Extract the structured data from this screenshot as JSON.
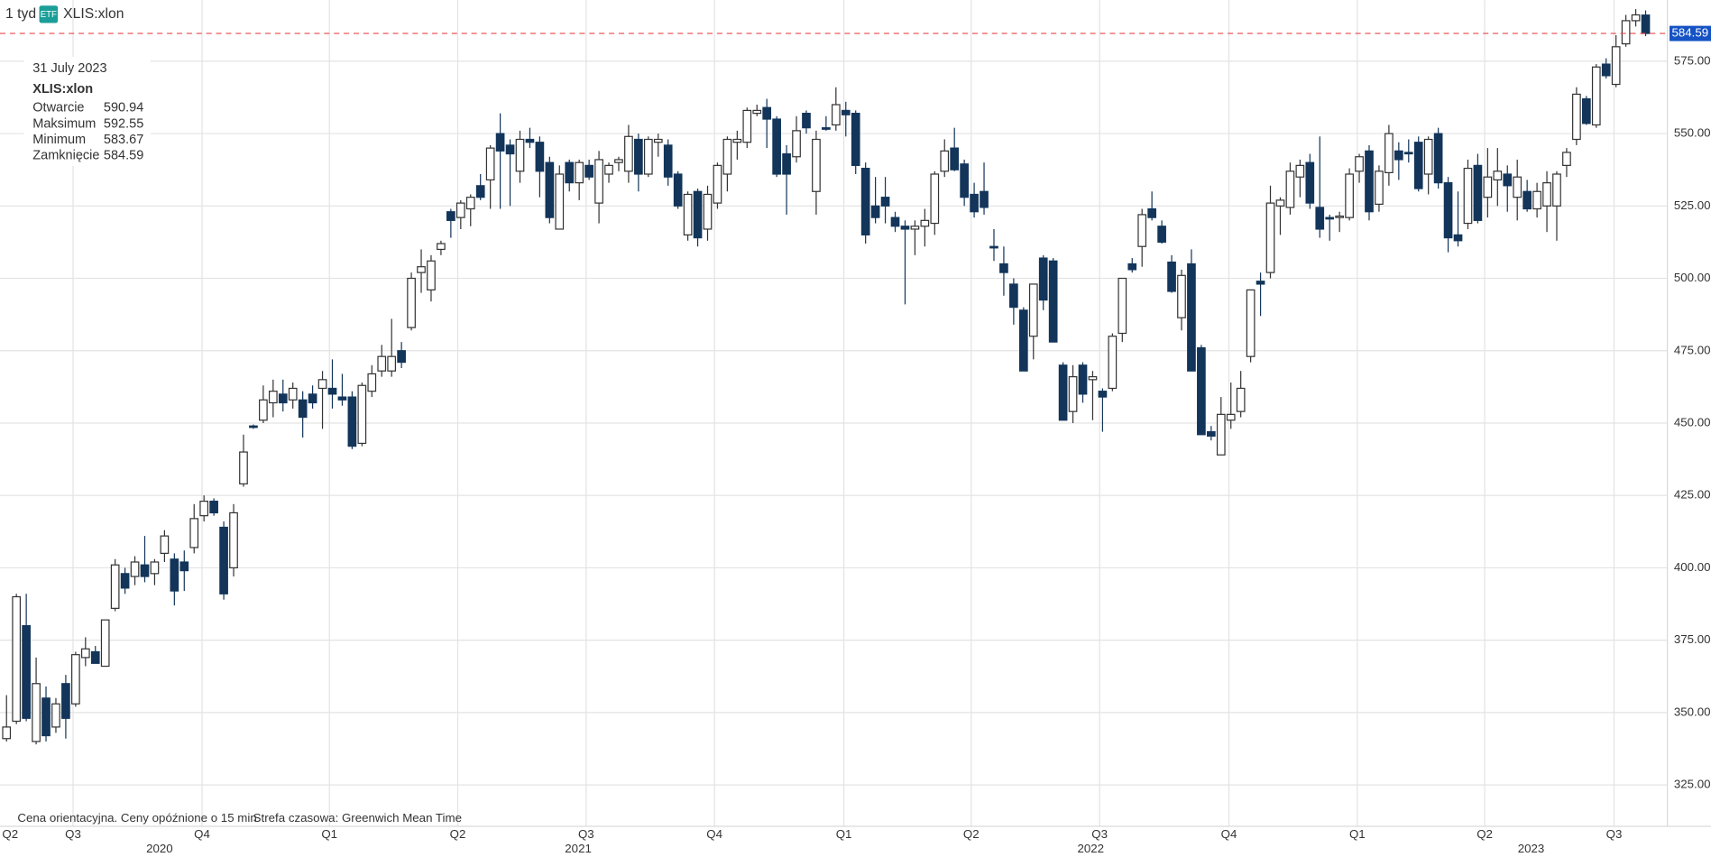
{
  "header": {
    "interval": "1 tyd",
    "badge": "ETF",
    "symbol": "XLIS:xlon"
  },
  "tooltip": {
    "date": "31 July 2023",
    "symbol": "XLIS:xlon",
    "rows": [
      {
        "label": "Otwarcie",
        "value": 590.94
      },
      {
        "label": "Maksimum",
        "value": 592.55
      },
      {
        "label": "Minimum",
        "value": 583.67
      },
      {
        "label": "Zamknięcie",
        "value": 584.59
      }
    ]
  },
  "footer": {
    "note": "Cena orientacyjna. Ceny opóźnione o 15 min",
    "timezone": "Strefa czasowa: Greenwich Mean Time"
  },
  "chart_data": {
    "type": "candlestick",
    "series": [
      {
        "name": "XLIS:xlon",
        "up_color": "#ffffff",
        "down_color": "#13355a",
        "open": [
          341,
          347,
          380,
          340,
          355,
          345,
          360,
          353,
          369,
          371,
          366,
          386,
          398,
          397,
          401,
          398,
          405,
          403,
          402,
          407,
          418,
          423,
          414,
          400,
          429,
          449,
          451,
          457,
          460,
          458,
          458,
          460,
          462,
          462,
          459,
          459,
          443,
          461,
          468,
          468,
          475,
          483,
          502,
          496,
          510,
          523,
          521,
          524,
          532,
          534,
          550,
          546,
          537,
          548,
          547,
          540,
          517,
          540,
          533,
          539,
          526,
          536,
          540,
          537,
          548,
          536,
          547,
          546,
          536,
          515,
          530,
          517,
          526,
          536,
          547,
          547,
          557,
          559,
          555,
          543,
          542,
          557,
          530,
          552,
          553,
          558,
          557,
          538,
          525,
          528,
          521,
          518,
          517,
          518,
          519,
          537,
          545,
          539.5,
          529,
          530,
          511,
          505,
          498,
          489,
          480,
          507,
          506,
          470,
          454,
          470,
          465,
          461,
          462,
          481,
          505,
          511,
          524,
          518,
          505.6,
          486.4,
          505,
          476,
          447,
          439,
          451,
          454,
          473,
          499,
          502,
          525,
          524.5,
          535,
          540,
          524.5,
          521,
          521,
          521,
          537,
          544,
          525.6,
          536.5,
          544,
          543.5,
          547,
          536,
          550,
          533,
          515,
          519,
          539,
          528,
          534,
          536,
          528,
          530,
          524,
          525,
          525,
          539,
          548,
          562,
          553,
          574,
          567,
          581,
          589,
          590.94
        ],
        "high": [
          356,
          391,
          391,
          369,
          359,
          355,
          363,
          371,
          376,
          373,
          382,
          403,
          400,
          404,
          411,
          403,
          413,
          405,
          406,
          422,
          425,
          424,
          416,
          422,
          446,
          449.5,
          463,
          465,
          465,
          464,
          461,
          463,
          468,
          472,
          467,
          461,
          464,
          470,
          477,
          486,
          478,
          502,
          510,
          508,
          513,
          524,
          527,
          529,
          536,
          546,
          557,
          548,
          551,
          552,
          549,
          542,
          539,
          541,
          541,
          541,
          544,
          540,
          542,
          553,
          550,
          549,
          550,
          548,
          537,
          530,
          531,
          532,
          540,
          549,
          551,
          559,
          560,
          562,
          556,
          546,
          556,
          558,
          551,
          556,
          566,
          561,
          558,
          540,
          535,
          535,
          523,
          520,
          520,
          524,
          537,
          548,
          552,
          541,
          533,
          540,
          517,
          511,
          500,
          490,
          498,
          508,
          507,
          471,
          470,
          471,
          468,
          462,
          481,
          500,
          507,
          524,
          530,
          520,
          508,
          503,
          510,
          477,
          449,
          459,
          464,
          468,
          496,
          502,
          532,
          528,
          540,
          541,
          543,
          549,
          522,
          523,
          538,
          543,
          546,
          539,
          553,
          547,
          548,
          549,
          549,
          552,
          535,
          530,
          541,
          543,
          545,
          545,
          539,
          541,
          534,
          533,
          537,
          537,
          545,
          566,
          563,
          574,
          576,
          584,
          591,
          593,
          592.55
        ],
        "low": [
          340,
          346,
          347,
          339,
          340,
          343,
          341,
          352,
          366,
          367,
          366,
          385,
          391,
          394,
          395,
          394,
          402,
          387,
          392,
          405,
          416,
          418,
          389,
          397,
          428,
          448,
          450,
          452,
          454,
          455,
          445,
          455,
          448,
          455,
          456,
          441,
          442,
          459,
          466,
          466,
          469,
          482,
          495,
          492,
          508,
          514,
          517,
          518,
          527,
          524,
          524,
          525,
          533,
          545,
          528,
          519,
          517,
          530,
          527,
          534,
          519,
          533,
          537,
          533,
          530,
          535,
          542,
          532,
          524,
          513,
          511,
          513,
          524,
          530,
          541,
          545,
          556,
          545,
          535,
          522,
          540,
          550,
          522,
          551,
          551,
          549,
          536,
          512,
          519,
          519,
          516,
          491,
          508,
          511,
          515,
          535,
          537,
          525,
          521,
          522,
          506,
          494,
          484,
          468,
          472,
          489,
          478,
          451,
          450,
          457,
          451,
          447,
          461,
          478,
          502,
          504,
          520,
          512,
          495,
          482,
          468,
          446,
          444,
          439,
          448,
          452,
          471,
          487,
          500,
          515,
          522,
          528,
          524,
          514,
          513,
          516,
          520,
          533,
          520,
          523,
          532,
          534,
          540,
          530,
          529,
          531,
          509,
          511,
          517,
          519,
          521,
          525,
          523,
          520,
          523,
          521,
          516,
          513,
          535,
          546,
          553,
          552,
          569,
          566,
          580,
          587,
          583.67
        ],
        "close": [
          345,
          390,
          348,
          360,
          342,
          353,
          348,
          370,
          372,
          367,
          382,
          401,
          393,
          402,
          397,
          402,
          411,
          392,
          399,
          417,
          423,
          419,
          391,
          419,
          440,
          448.5,
          458,
          461,
          457,
          462,
          452,
          457,
          465,
          460,
          458,
          442,
          463,
          467,
          473,
          473,
          471,
          500,
          504,
          506,
          512,
          520,
          526,
          528,
          528,
          545,
          544,
          543,
          548,
          547,
          537,
          521,
          536,
          533,
          540,
          535,
          541,
          539,
          541,
          549,
          536,
          548,
          548,
          535,
          525,
          529,
          514,
          529,
          539,
          548,
          548,
          558,
          558,
          555,
          536,
          536,
          551,
          552,
          548,
          551.5,
          560,
          556.5,
          539,
          515,
          521,
          525,
          518,
          517,
          518,
          520,
          536,
          544,
          537.5,
          528,
          523,
          524.5,
          510.5,
          502,
          490,
          468,
          498,
          492.5,
          478,
          451,
          466,
          460,
          466,
          459,
          480,
          500,
          503,
          522,
          521,
          512.5,
          495.5,
          501,
          468,
          446,
          445.5,
          453,
          453,
          462,
          496,
          498,
          526,
          527,
          537,
          539,
          526,
          517,
          520.5,
          521.5,
          536,
          542,
          523,
          537,
          550,
          541,
          543,
          531,
          548,
          533,
          514,
          513,
          538,
          520,
          535,
          537,
          532,
          535,
          524,
          530,
          533,
          536,
          543.5,
          563.6,
          553.5,
          573,
          570,
          580,
          589,
          591,
          584.59
        ]
      }
    ],
    "last_price": 584.59,
    "last_price_color": "#1552c4",
    "xlim": [
      -0.66,
      168.2
    ],
    "ylim": [
      310.7,
      596.1
    ],
    "yticks": [
      {
        "value": 325,
        "label": "325.00"
      },
      {
        "value": 350,
        "label": "350.00"
      },
      {
        "value": 375,
        "label": "375.00"
      },
      {
        "value": 400,
        "label": "400.00"
      },
      {
        "value": 425,
        "label": "425.00"
      },
      {
        "value": 450,
        "label": "450.00"
      },
      {
        "value": 475,
        "label": "475.00"
      },
      {
        "value": 500,
        "label": "500.00"
      },
      {
        "value": 525,
        "label": "525.00"
      },
      {
        "value": 550,
        "label": "550.00"
      },
      {
        "value": 575,
        "label": "575.00"
      }
    ],
    "xticks": [
      {
        "value": -6.3,
        "label": "Q2"
      },
      {
        "value": 6.74,
        "label": "Q3"
      },
      {
        "value": 19.8,
        "label": "Q4"
      },
      {
        "value": 32.7,
        "label": "Q1"
      },
      {
        "value": 45.7,
        "label": "Q2"
      },
      {
        "value": 58.7,
        "label": "Q3"
      },
      {
        "value": 71.7,
        "label": "Q4"
      },
      {
        "value": 84.8,
        "label": "Q1"
      },
      {
        "value": 97.7,
        "label": "Q2"
      },
      {
        "value": 110.7,
        "label": "Q3"
      },
      {
        "value": 123.8,
        "label": "Q4"
      },
      {
        "value": 136.8,
        "label": "Q1"
      },
      {
        "value": 149.7,
        "label": "Q2"
      },
      {
        "value": 162.8,
        "label": "Q3"
      }
    ],
    "year_ticks": [
      {
        "value": 15.5,
        "label": "2020"
      },
      {
        "value": 57.9,
        "label": "2021"
      },
      {
        "value": 109.8,
        "label": "2022"
      },
      {
        "value": 154.4,
        "label": "2023"
      }
    ],
    "grid": true
  }
}
